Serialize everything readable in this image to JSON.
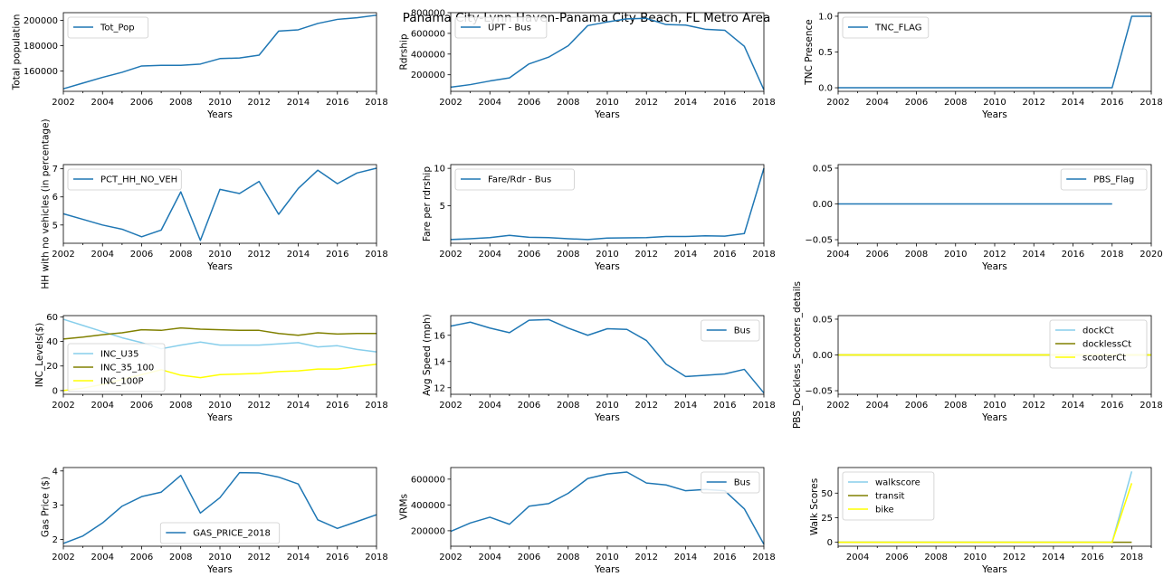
{
  "figure_title": "Panama City-Lynn Haven-Panama City Beach, FL Metro Area",
  "chart_data": [
    {
      "id": "tot-pop",
      "type": "line",
      "xlabel": "Years",
      "ylabel": "Total population",
      "xlim": [
        2002,
        2018
      ],
      "ylim": [
        144000,
        206000
      ],
      "xticks": [
        2002,
        2004,
        2006,
        2008,
        2010,
        2012,
        2014,
        2016,
        2018
      ],
      "yticks": [
        160000,
        180000,
        200000
      ],
      "yticklabels": [
        "160000",
        "180000",
        "200000"
      ],
      "legend": "upper-left",
      "series": [
        {
          "name": "Tot_Pop",
          "color": "#1f77b4",
          "x": [
            2002,
            2003,
            2004,
            2005,
            2006,
            2007,
            2008,
            2009,
            2010,
            2011,
            2012,
            2013,
            2014,
            2015,
            2016,
            2017,
            2018
          ],
          "y": [
            146000,
            150500,
            155000,
            159000,
            164000,
            164500,
            164500,
            165500,
            169800,
            170300,
            172500,
            191500,
            192500,
            197500,
            200700,
            202000,
            204000
          ]
        }
      ]
    },
    {
      "id": "upt-bus",
      "type": "line",
      "xlabel": "Years",
      "ylabel": "Rdrship",
      "xlim": [
        2002,
        2018
      ],
      "ylim": [
        40000,
        800000
      ],
      "xticks": [
        2002,
        2004,
        2006,
        2008,
        2010,
        2012,
        2014,
        2016,
        2018
      ],
      "yticks": [
        200000,
        400000,
        600000,
        800000
      ],
      "yticklabels": [
        "200000",
        "400000",
        "600000",
        "800000"
      ],
      "legend": "upper-left",
      "series": [
        {
          "name": "UPT - Bus",
          "color": "#1f77b4",
          "x": [
            2002,
            2003,
            2004,
            2005,
            2006,
            2007,
            2008,
            2009,
            2010,
            2011,
            2012,
            2013,
            2014,
            2015,
            2016,
            2017,
            2018
          ],
          "y": [
            80000,
            105000,
            140000,
            170000,
            305000,
            370000,
            480000,
            675000,
            710000,
            740000,
            745000,
            685000,
            680000,
            640000,
            630000,
            475000,
            55000
          ]
        }
      ]
    },
    {
      "id": "tnc-flag",
      "type": "line",
      "xlabel": "Years",
      "ylabel": "TNC Presence",
      "xlim": [
        2002,
        2018
      ],
      "ylim": [
        -0.05,
        1.05
      ],
      "xticks": [
        2002,
        2004,
        2006,
        2008,
        2010,
        2012,
        2014,
        2016,
        2018
      ],
      "yticks": [
        0,
        0.5,
        1
      ],
      "yticklabels": [
        "0.0",
        "0.5",
        "1.0"
      ],
      "legend": "upper-left",
      "series": [
        {
          "name": "TNC_FLAG",
          "color": "#1f77b4",
          "x": [
            2002,
            2003,
            2004,
            2005,
            2006,
            2007,
            2008,
            2009,
            2010,
            2011,
            2012,
            2013,
            2014,
            2015,
            2016,
            2017,
            2018
          ],
          "y": [
            0,
            0,
            0,
            0,
            0,
            0,
            0,
            0,
            0,
            0,
            0,
            0,
            0,
            0,
            0,
            1,
            1
          ]
        }
      ]
    },
    {
      "id": "pct-hh-no-veh",
      "type": "line",
      "xlabel": "Years",
      "ylabel": "HH with no vehicles (in percentage)",
      "xlim": [
        2002,
        2018
      ],
      "ylim": [
        4.35,
        7.15
      ],
      "xticks": [
        2002,
        2004,
        2006,
        2008,
        2010,
        2012,
        2014,
        2016,
        2018
      ],
      "yticks": [
        5,
        6,
        7
      ],
      "yticklabels": [
        "5",
        "6",
        "7"
      ],
      "legend": "upper-left",
      "series": [
        {
          "name": "PCT_HH_NO_VEH",
          "color": "#1f77b4",
          "x": [
            2002,
            2003,
            2004,
            2005,
            2006,
            2007,
            2008,
            2009,
            2010,
            2011,
            2012,
            2013,
            2014,
            2015,
            2016,
            2017,
            2018
          ],
          "y": [
            5.4,
            5.2,
            5.0,
            4.85,
            4.58,
            4.82,
            6.18,
            4.45,
            6.27,
            6.12,
            6.55,
            5.38,
            6.3,
            6.95,
            6.47,
            6.85,
            7.02
          ]
        }
      ]
    },
    {
      "id": "fare-rdr-bus",
      "type": "line",
      "xlabel": "Years",
      "ylabel": "Fare per rdrship",
      "xlim": [
        2002,
        2018
      ],
      "ylim": [
        0,
        10.5
      ],
      "xticks": [
        2002,
        2004,
        2006,
        2008,
        2010,
        2012,
        2014,
        2016,
        2018
      ],
      "yticks": [
        5,
        10
      ],
      "yticklabels": [
        "5",
        "10"
      ],
      "legend": "upper-left",
      "series": [
        {
          "name": "Fare/Rdr - Bus",
          "color": "#1f77b4",
          "x": [
            2002,
            2003,
            2004,
            2005,
            2006,
            2007,
            2008,
            2009,
            2010,
            2011,
            2012,
            2013,
            2014,
            2015,
            2016,
            2017,
            2018
          ],
          "y": [
            0.5,
            0.6,
            0.75,
            1.05,
            0.8,
            0.75,
            0.6,
            0.5,
            0.7,
            0.72,
            0.75,
            0.9,
            0.9,
            1.0,
            0.95,
            1.3,
            10.0
          ]
        }
      ]
    },
    {
      "id": "pbs-flag",
      "type": "line",
      "xlabel": "Years",
      "ylabel": "",
      "xlim": [
        2004,
        2020
      ],
      "ylim": [
        -0.055,
        0.055
      ],
      "xticks": [
        2004,
        2006,
        2008,
        2010,
        2012,
        2014,
        2016,
        2018,
        2020
      ],
      "yticks": [
        -0.05,
        0,
        0.05
      ],
      "yticklabels": [
        "−0.05",
        "0.00",
        "0.05"
      ],
      "legend": "upper-right",
      "series": [
        {
          "name": "PBS_Flag",
          "color": "#1f77b4",
          "x": [
            2004,
            2006,
            2008,
            2010,
            2012,
            2014,
            2016,
            2018
          ],
          "y": [
            0,
            0,
            0,
            0,
            0,
            0,
            0,
            0
          ]
        }
      ]
    },
    {
      "id": "inc-levels",
      "type": "line",
      "xlabel": "Years",
      "ylabel": "INC_Levels($)",
      "xlim": [
        2002,
        2018
      ],
      "ylim": [
        -3,
        61
      ],
      "xticks": [
        2002,
        2004,
        2006,
        2008,
        2010,
        2012,
        2014,
        2016,
        2018
      ],
      "yticks": [
        0,
        20,
        40,
        60
      ],
      "yticklabels": [
        "0",
        "20",
        "40",
        "60"
      ],
      "legend": "lower-left",
      "series": [
        {
          "name": "INC_U35",
          "color": "#87ceeb",
          "x": [
            2002,
            2003,
            2004,
            2005,
            2006,
            2007,
            2008,
            2009,
            2010,
            2011,
            2012,
            2013,
            2014,
            2015,
            2016,
            2017,
            2018
          ],
          "y": [
            58,
            53,
            48,
            43,
            39,
            34,
            37,
            39.5,
            37,
            37,
            37,
            38,
            39,
            35.5,
            36.5,
            33.5,
            31.5
          ]
        },
        {
          "name": "INC_35_100",
          "color": "#808000",
          "x": [
            2002,
            2003,
            2004,
            2005,
            2006,
            2007,
            2008,
            2009,
            2010,
            2011,
            2012,
            2013,
            2014,
            2015,
            2016,
            2017,
            2018
          ],
          "y": [
            42,
            43.5,
            45.5,
            47,
            49.5,
            49,
            51,
            50,
            49.5,
            49,
            49,
            46.5,
            45,
            47,
            46,
            46.5,
            46.5
          ]
        },
        {
          "name": "INC_100P",
          "color": "#ffff00",
          "x": [
            2002,
            2003,
            2004,
            2005,
            2006,
            2007,
            2008,
            2009,
            2010,
            2011,
            2012,
            2013,
            2014,
            2015,
            2016,
            2017,
            2018
          ],
          "y": [
            0,
            2,
            5,
            9,
            13,
            17,
            12.5,
            10.5,
            13,
            13.5,
            14,
            15.5,
            16,
            17.5,
            17.5,
            19.5,
            21.5
          ]
        }
      ]
    },
    {
      "id": "avg-speed",
      "type": "line",
      "xlabel": "Years",
      "ylabel": "Avg Speed (mph)",
      "xlim": [
        2002,
        2018
      ],
      "ylim": [
        11.5,
        17.5
      ],
      "xticks": [
        2002,
        2004,
        2006,
        2008,
        2010,
        2012,
        2014,
        2016,
        2018
      ],
      "yticks": [
        12,
        14,
        16
      ],
      "yticklabels": [
        "12",
        "14",
        "16"
      ],
      "legend": "upper-right",
      "series": [
        {
          "name": "Bus",
          "color": "#1f77b4",
          "x": [
            2002,
            2003,
            2004,
            2005,
            2006,
            2007,
            2008,
            2009,
            2010,
            2011,
            2012,
            2013,
            2014,
            2015,
            2016,
            2017,
            2018
          ],
          "y": [
            16.7,
            17.0,
            16.55,
            16.2,
            17.15,
            17.2,
            16.55,
            16.0,
            16.5,
            16.45,
            15.6,
            13.8,
            12.85,
            12.95,
            13.05,
            13.4,
            11.6
          ]
        }
      ]
    },
    {
      "id": "pbs-dockless-scooters",
      "type": "line",
      "xlabel": "Years",
      "ylabel": "PBS_Dockless_Scooters_details",
      "xlim": [
        2002,
        2018
      ],
      "ylim": [
        -0.055,
        0.055
      ],
      "xticks": [
        2002,
        2004,
        2006,
        2008,
        2010,
        2012,
        2014,
        2016,
        2018
      ],
      "yticks": [
        -0.05,
        0,
        0.05
      ],
      "yticklabels": [
        "−0.05",
        "0.00",
        "0.05"
      ],
      "legend": "upper-right",
      "series": [
        {
          "name": "dockCt",
          "color": "#87ceeb",
          "x": [
            2002,
            2018
          ],
          "y": [
            0,
            0
          ]
        },
        {
          "name": "docklessCt",
          "color": "#808000",
          "x": [
            2002,
            2018
          ],
          "y": [
            0,
            0
          ]
        },
        {
          "name": "scooterCt",
          "color": "#ffff00",
          "x": [
            2002,
            2018
          ],
          "y": [
            0,
            0
          ]
        }
      ]
    },
    {
      "id": "gas-price",
      "type": "line",
      "xlabel": "Years",
      "ylabel": "Gas Price ($)",
      "xlim": [
        2002,
        2018
      ],
      "ylim": [
        1.8,
        4.1
      ],
      "xticks": [
        2002,
        2004,
        2006,
        2008,
        2010,
        2012,
        2014,
        2016,
        2018
      ],
      "yticks": [
        2,
        3,
        4
      ],
      "yticklabels": [
        "2",
        "3",
        "4"
      ],
      "legend": "lower-center",
      "series": [
        {
          "name": "GAS_PRICE_2018",
          "color": "#1f77b4",
          "x": [
            2002,
            2003,
            2004,
            2005,
            2006,
            2007,
            2008,
            2009,
            2010,
            2011,
            2012,
            2013,
            2014,
            2015,
            2016,
            2017,
            2018
          ],
          "y": [
            1.88,
            2.1,
            2.48,
            2.97,
            3.25,
            3.38,
            3.87,
            2.77,
            3.22,
            3.95,
            3.94,
            3.82,
            3.62,
            2.57,
            2.32,
            2.52,
            2.72
          ]
        }
      ]
    },
    {
      "id": "vrms",
      "type": "line",
      "xlabel": "Years",
      "ylabel": "VRMs",
      "xlim": [
        2002,
        2018
      ],
      "ylim": [
        80000,
        690000
      ],
      "xticks": [
        2002,
        2004,
        2006,
        2008,
        2010,
        2012,
        2014,
        2016,
        2018
      ],
      "yticks": [
        200000,
        400000,
        600000
      ],
      "yticklabels": [
        "200000",
        "400000",
        "600000"
      ],
      "legend": "upper-right",
      "series": [
        {
          "name": "Bus",
          "color": "#1f77b4",
          "x": [
            2002,
            2003,
            2004,
            2005,
            2006,
            2007,
            2008,
            2009,
            2010,
            2011,
            2012,
            2013,
            2014,
            2015,
            2016,
            2017,
            2018
          ],
          "y": [
            195000,
            260000,
            305000,
            250000,
            390000,
            410000,
            490000,
            605000,
            640000,
            655000,
            570000,
            555000,
            510000,
            520000,
            510000,
            370000,
            95000
          ]
        }
      ]
    },
    {
      "id": "walk-scores",
      "type": "line",
      "xlabel": "Years",
      "ylabel": "Walk Scores",
      "xlim": [
        2003,
        2019
      ],
      "ylim": [
        -4,
        76
      ],
      "xticks": [
        2004,
        2006,
        2008,
        2010,
        2012,
        2014,
        2016,
        2018
      ],
      "yticks": [
        0,
        25,
        50
      ],
      "yticklabels": [
        "0",
        "25",
        "50"
      ],
      "legend": "upper-left",
      "series": [
        {
          "name": "walkscore",
          "color": "#87ceeb",
          "x": [
            2003,
            2017,
            2018
          ],
          "y": [
            0,
            0,
            72
          ]
        },
        {
          "name": "transit",
          "color": "#808000",
          "x": [
            2003,
            2017,
            2018
          ],
          "y": [
            0,
            0,
            0
          ]
        },
        {
          "name": "bike",
          "color": "#ffff00",
          "x": [
            2003,
            2017,
            2018
          ],
          "y": [
            0,
            0,
            60
          ]
        }
      ]
    }
  ]
}
